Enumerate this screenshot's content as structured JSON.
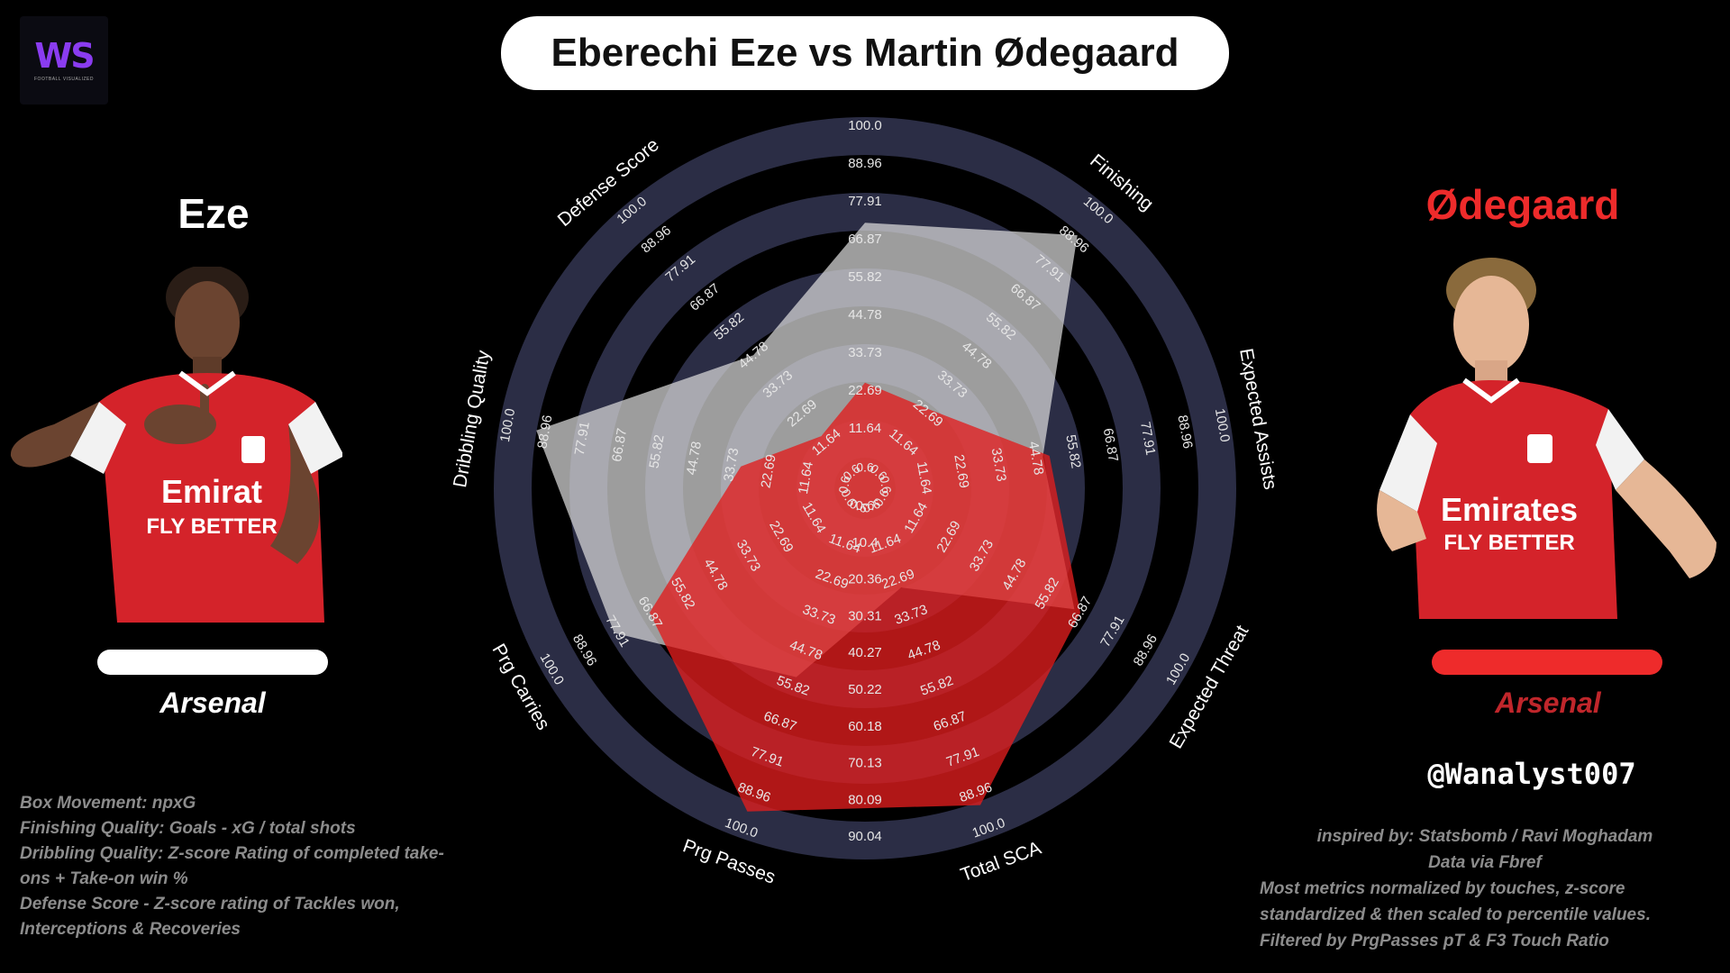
{
  "logo": {
    "mark": "WS",
    "subtitle": "FOOTBALL VISUALIZED"
  },
  "title": "Eberechi Eze vs Martin Ødegaard",
  "player1": {
    "name": "Eze",
    "club": "Arsenal",
    "color": "#ffffff"
  },
  "player2": {
    "name": "Ødegaard",
    "club": "Arsenal",
    "color": "#e8282b"
  },
  "handle": "@Wanalyst007",
  "notes_left": [
    "Box Movement: npxG",
    "Finishing Quality:  Goals - xG / total shots",
    "Dribbling Quality: Z-score Rating of completed take-",
    "ons  + Take-on win %",
    "Defense Score - Z-score rating of Tackles won,",
    "Interceptions & Recoveries"
  ],
  "notes_right": [
    "inspired by: Statsbomb / Ravi Moghadam",
    "Data via Fbref",
    "Most metrics normalized by touches, z-score",
    "standardized & then scaled to percentile values.",
    "Filtered by PrgPasses pT & F3 Touch Ratio"
  ],
  "chart_data": {
    "type": "radar",
    "axes": [
      "Box Movement",
      "Finishing",
      "Expected Assists",
      "Expected Threat",
      "Total SCA",
      "Prg Passes",
      "Prg Carries",
      "Dribbling Quality",
      "Defense Score"
    ],
    "ring_labels": [
      "11.64",
      "22.69",
      "33.73",
      "44.78",
      "55.82",
      "66.87",
      "77.91",
      "88.96",
      "100.0"
    ],
    "inner_label": "0.6",
    "bottom_scale": [
      "0.6",
      "10.4",
      "20.36",
      "30.31",
      "40.27",
      "50.22",
      "60.18",
      "70.13",
      "80.09",
      "90.04"
    ],
    "range": [
      0,
      100
    ],
    "series": [
      {
        "name": "Eze",
        "color": "#d9d9d9",
        "values": [
          69,
          88,
          44,
          62,
          22,
          50,
          76,
          89,
          42
        ]
      },
      {
        "name": "Ødegaard",
        "color": "#e11d1d",
        "values": [
          22,
          21,
          46,
          64,
          90,
          92,
          64,
          28,
          11
        ]
      }
    ]
  }
}
